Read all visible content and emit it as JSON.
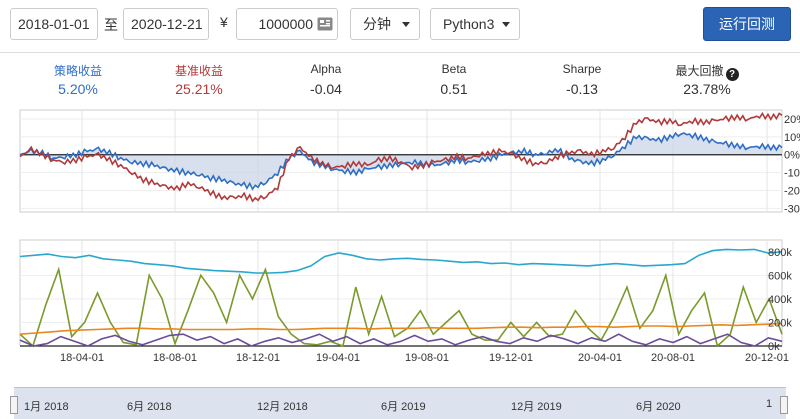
{
  "toolbar": {
    "start_date": "2018-01-01",
    "range_sep": "至",
    "end_date": "2020-12-21",
    "currency": "¥",
    "capital": "1000000",
    "frequency": "分钟",
    "language": "Python3",
    "run_label": "运行回测"
  },
  "stats": [
    {
      "label": "策略收益",
      "value": "5.20%"
    },
    {
      "label": "基准收益",
      "value": "25.21%"
    },
    {
      "label": "Alpha",
      "value": "-0.04"
    },
    {
      "label": "Beta",
      "value": "0.51"
    },
    {
      "label": "Sharpe",
      "value": "-0.13"
    },
    {
      "label": "最大回撤",
      "value": "23.78%"
    }
  ],
  "colors": {
    "strategy": "#2e6ec5",
    "benchmark": "#b03a3a",
    "fill": "#c9d3e6",
    "cyan": "#2aa7cc",
    "green": "#7a9a2c",
    "orange": "#e8871e",
    "purple": "#6b4c9a",
    "button": "#2b63b5"
  },
  "chart_data": [
    {
      "type": "line",
      "ylim": [
        -32,
        25
      ],
      "y_ticks": [
        "20%",
        "10%",
        "0%",
        "-10%",
        "-20%",
        "-30%"
      ],
      "y_tick_values": [
        20,
        10,
        0,
        -10,
        -20,
        -30
      ],
      "series": [
        {
          "name": "策略收益",
          "color": "strategy",
          "values": [
            0,
            2,
            1,
            -2,
            -1,
            0,
            2,
            3,
            1,
            -2,
            -4,
            -5,
            -6,
            -8,
            -9,
            -10,
            -11,
            -13,
            -14,
            -16,
            -17,
            -18,
            -15,
            -10,
            -2,
            2,
            -4,
            -6,
            -8,
            -9,
            -10,
            -8,
            -7,
            -6,
            -5,
            -4,
            -5,
            -6,
            -5,
            -3,
            -4,
            -3,
            -2,
            0,
            1,
            2,
            0,
            1,
            3,
            -2,
            -4,
            -5,
            -3,
            0,
            5,
            10,
            9,
            8,
            10,
            12,
            11,
            9,
            7,
            6,
            5,
            4,
            5,
            4,
            4
          ]
        },
        {
          "name": "基准收益",
          "color": "benchmark",
          "values": [
            -1,
            3,
            0,
            -3,
            -4,
            -3,
            -1,
            0,
            -3,
            -6,
            -10,
            -14,
            -16,
            -18,
            -19,
            -16,
            -18,
            -21,
            -24,
            -24,
            -23,
            -25,
            -23,
            -18,
            -2,
            4,
            -2,
            -5,
            -7,
            -6,
            -5,
            -6,
            -3,
            -2,
            -4,
            -7,
            -6,
            -4,
            -3,
            -1,
            -2,
            0,
            1,
            2,
            0,
            -3,
            -5,
            -4,
            -1,
            1,
            2,
            0,
            2,
            4,
            10,
            18,
            20,
            18,
            19,
            17,
            19,
            18,
            19,
            20,
            21,
            20,
            22,
            21,
            22
          ]
        }
      ],
      "x_start": "2018-01-01",
      "x_end": "2020-12-21"
    },
    {
      "type": "line",
      "ylim": [
        0,
        900
      ],
      "y_ticks": [
        "800k",
        "600k",
        "400k",
        "200k",
        "0k"
      ],
      "y_tick_values": [
        800,
        600,
        400,
        200,
        0
      ],
      "x_ticks": [
        "18-04-01",
        "18-08-01",
        "18-12-01",
        "19-04-01",
        "19-08-01",
        "19-12-01",
        "20-04-01",
        "20-08-01",
        "20-12-01"
      ],
      "series": [
        {
          "name": "cyan",
          "color": "cyan",
          "values": [
            760,
            770,
            780,
            760,
            750,
            770,
            740,
            730,
            720,
            700,
            690,
            680,
            660,
            650,
            640,
            635,
            630,
            620,
            620,
            625,
            640,
            680,
            760,
            790,
            770,
            740,
            730,
            740,
            745,
            735,
            730,
            720,
            710,
            715,
            700,
            705,
            690,
            700,
            695,
            690,
            685,
            680,
            690,
            700,
            690,
            680,
            685,
            690,
            700,
            770,
            810,
            820,
            815,
            820,
            790,
            800
          ]
        },
        {
          "name": "green",
          "color": "green",
          "values": [
            100,
            0,
            350,
            650,
            80,
            200,
            450,
            200,
            30,
            10,
            600,
            400,
            20,
            300,
            600,
            450,
            200,
            600,
            400,
            650,
            250,
            100,
            20,
            10,
            40,
            0,
            500,
            100,
            420,
            80,
            150,
            300,
            100,
            200,
            300,
            100,
            50,
            50,
            200,
            80,
            200,
            80,
            100,
            300,
            150,
            50,
            250,
            500,
            150,
            300,
            600,
            100,
            300,
            450,
            0,
            100,
            500,
            200,
            400,
            100
          ]
        },
        {
          "name": "orange",
          "color": "orange",
          "values": [
            100,
            110,
            120,
            130,
            135,
            140,
            145,
            150,
            150,
            145,
            145,
            140,
            140,
            140,
            140,
            145,
            145,
            140,
            140,
            145,
            150,
            150,
            150,
            145,
            150,
            150,
            150,
            155,
            150,
            150,
            150,
            155,
            160,
            160,
            155,
            160,
            160,
            165,
            165,
            160,
            165,
            170,
            170,
            165,
            170,
            175,
            180,
            175,
            180,
            185,
            190
          ]
        },
        {
          "name": "purple",
          "color": "purple",
          "values": [
            50,
            0,
            20,
            80,
            40,
            0,
            60,
            90,
            40,
            10,
            50,
            90,
            100,
            50,
            80,
            20,
            60,
            0,
            40,
            70,
            30,
            60,
            100,
            40,
            80,
            20,
            60,
            10,
            40,
            90,
            40,
            60,
            10,
            50,
            80,
            40,
            20,
            70,
            40,
            90,
            60,
            20,
            70,
            40,
            100,
            40,
            10,
            60,
            30,
            80,
            20,
            60,
            100,
            30,
            0,
            70,
            40
          ]
        }
      ]
    }
  ],
  "navigator": {
    "labels": [
      "1月 2018",
      "6月 2018",
      "12月 2018",
      "6月 2019",
      "12月 2019",
      "6月 2020",
      "1"
    ]
  }
}
